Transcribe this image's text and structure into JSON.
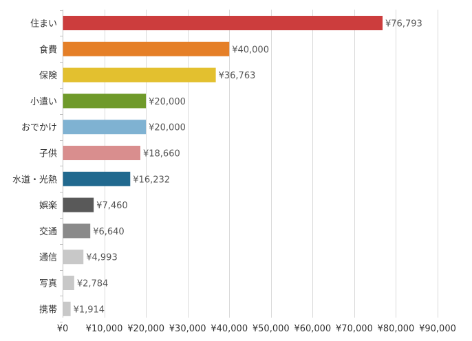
{
  "chart_data": {
    "type": "bar",
    "orientation": "horizontal",
    "title": "",
    "xlabel": "",
    "ylabel": "",
    "xlim": [
      0,
      90000
    ],
    "grid": true,
    "legend": "none",
    "tick_labels": [
      "¥0",
      "¥10,000",
      "¥20,000",
      "¥30,000",
      "¥40,000",
      "¥50,000",
      "¥60,000",
      "¥70,000",
      "¥80,000",
      "¥90,000"
    ],
    "tick_values": [
      0,
      10000,
      20000,
      30000,
      40000,
      50000,
      60000,
      70000,
      80000,
      90000
    ],
    "categories": [
      "住まい",
      "食費",
      "保険",
      "小遣い",
      "おでかけ",
      "子供",
      "水道・光熱",
      "娯楽",
      "交通",
      "通信",
      "写真",
      "携帯"
    ],
    "values": [
      76793,
      40000,
      36763,
      20000,
      20000,
      18660,
      16232,
      7460,
      6640,
      4993,
      2784,
      1914
    ],
    "value_labels": [
      "¥76,793",
      "¥40,000",
      "¥36,763",
      "¥20,000",
      "¥20,000",
      "¥18,660",
      "¥16,232",
      "¥7,460",
      "¥6,640",
      "¥4,993",
      "¥2,784",
      "¥1,914"
    ],
    "colors": [
      "#cc3d3d",
      "#e57f27",
      "#e3c02f",
      "#6f9a2a",
      "#7fb2d2",
      "#d98e8e",
      "#21698f",
      "#595959",
      "#8a8a8a",
      "#c8c8c8",
      "#c8c8c8",
      "#c8c8c8"
    ]
  }
}
